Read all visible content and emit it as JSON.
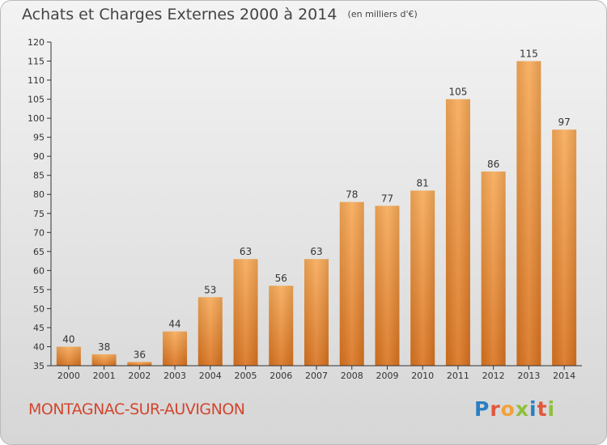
{
  "header": {
    "title": "Achats et Charges Externes 2000 à 2014",
    "unit": "(en milliers d'€)"
  },
  "commune": "MONTAGNAC-SUR-AUVIGNON",
  "logo": {
    "text": "Proxiti",
    "colors": [
      "#2b7fc1",
      "#e2573a",
      "#f2a13a",
      "#8fbf3b",
      "#2b7fc1",
      "#e2573a",
      "#8fbf3b"
    ]
  },
  "colors": {
    "bar_light": "#f7aa58",
    "bar_dark": "#d9731f",
    "axis": "#333333"
  },
  "chart_data": {
    "type": "bar",
    "categories": [
      "2000",
      "2001",
      "2002",
      "2003",
      "2004",
      "2005",
      "2006",
      "2007",
      "2008",
      "2009",
      "2010",
      "2011",
      "2012",
      "2013",
      "2014"
    ],
    "values": [
      40,
      38,
      36,
      44,
      53,
      63,
      56,
      63,
      78,
      77,
      81,
      105,
      86,
      115,
      97
    ],
    "data_labels": [
      "40",
      "38",
      "36",
      "44",
      "53",
      "63",
      "56",
      "63",
      "78",
      "77",
      "81",
      "105",
      "86",
      "115",
      "97"
    ],
    "ylim": [
      35,
      120
    ],
    "yticks": [
      35,
      40,
      45,
      50,
      55,
      60,
      65,
      70,
      75,
      80,
      85,
      90,
      95,
      100,
      105,
      110,
      115,
      120
    ],
    "grid": false
  }
}
